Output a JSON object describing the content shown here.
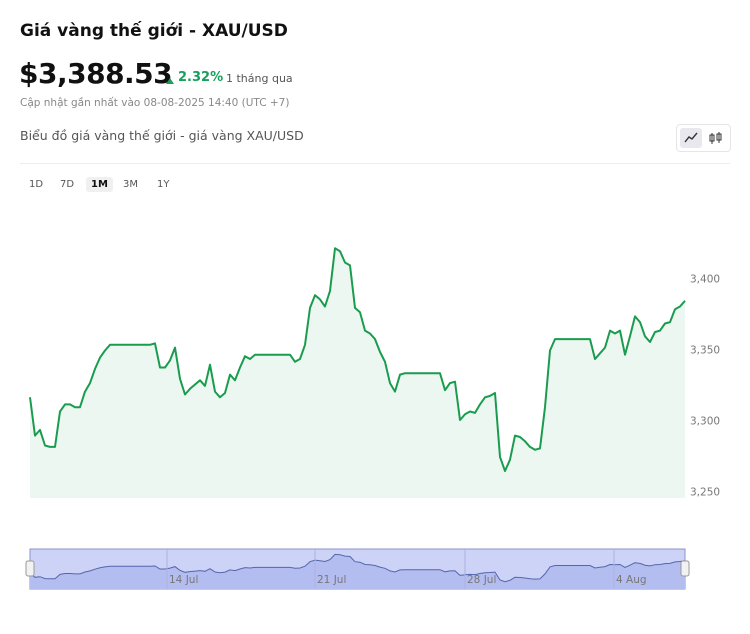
{
  "header": {
    "title": "Giá vàng thế giới - XAU/USD",
    "price": "$3,388.53",
    "change": "2.32%",
    "change_period": "1 tháng qua",
    "updated": "Cập nhật gần nhất vào 08-08-2025 14:40 (UTC +7)",
    "chart_heading": "Biểu đồ giá vàng thế giới - giá vàng XAU/USD"
  },
  "timeframes": [
    "1D",
    "7D",
    "1M",
    "3M",
    "1Y"
  ],
  "chart_data": {
    "type": "area",
    "color": "#1a9c4e",
    "values": [
      3317,
      3290,
      3294,
      3283,
      3282,
      3282,
      3307,
      3312,
      3312,
      3310,
      3310,
      3321,
      3327,
      3337,
      3345,
      3350,
      3354,
      3354,
      3354,
      3354,
      3354,
      3354,
      3354,
      3354,
      3354,
      3355,
      3338,
      3338,
      3343,
      3352,
      3330,
      3319,
      3323,
      3326,
      3329,
      3325,
      3340,
      3321,
      3317,
      3320,
      3333,
      3329,
      3338,
      3346,
      3344,
      3347,
      3347,
      3347,
      3347,
      3347,
      3347,
      3347,
      3347,
      3342,
      3344,
      3354,
      3380,
      3389,
      3386,
      3381,
      3392,
      3422,
      3420,
      3412,
      3410,
      3380,
      3377,
      3364,
      3362,
      3358,
      3349,
      3342,
      3327,
      3321,
      3333,
      3334,
      3334,
      3334,
      3334,
      3334,
      3334,
      3334,
      3334,
      3322,
      3327,
      3328,
      3301,
      3305,
      3307,
      3306,
      3312,
      3317,
      3318,
      3320,
      3275,
      3265,
      3273,
      3290,
      3289,
      3286,
      3282,
      3280,
      3281,
      3310,
      3350,
      3358,
      3358,
      3358,
      3358,
      3358,
      3358,
      3358,
      3358,
      3344,
      3348,
      3352,
      3364,
      3362,
      3364,
      3347,
      3360,
      3374,
      3370,
      3360,
      3356,
      3363,
      3364,
      3369,
      3370,
      3379,
      3381,
      3385
    ],
    "ylim": [
      3246,
      3430
    ],
    "yticks": [
      {
        "value": 3250,
        "label": "3,250"
      },
      {
        "value": 3300,
        "label": "3,300"
      },
      {
        "value": 3350,
        "label": "3,350"
      },
      {
        "value": 3400,
        "label": "3,400"
      }
    ],
    "navigator_xticks": [
      {
        "value": 27.4,
        "label": "14 Jul"
      },
      {
        "value": 57,
        "label": "21 Jul"
      },
      {
        "value": 87,
        "label": "28 Jul"
      },
      {
        "value": 116.8,
        "label": "4 Aug"
      }
    ],
    "grid": false
  }
}
